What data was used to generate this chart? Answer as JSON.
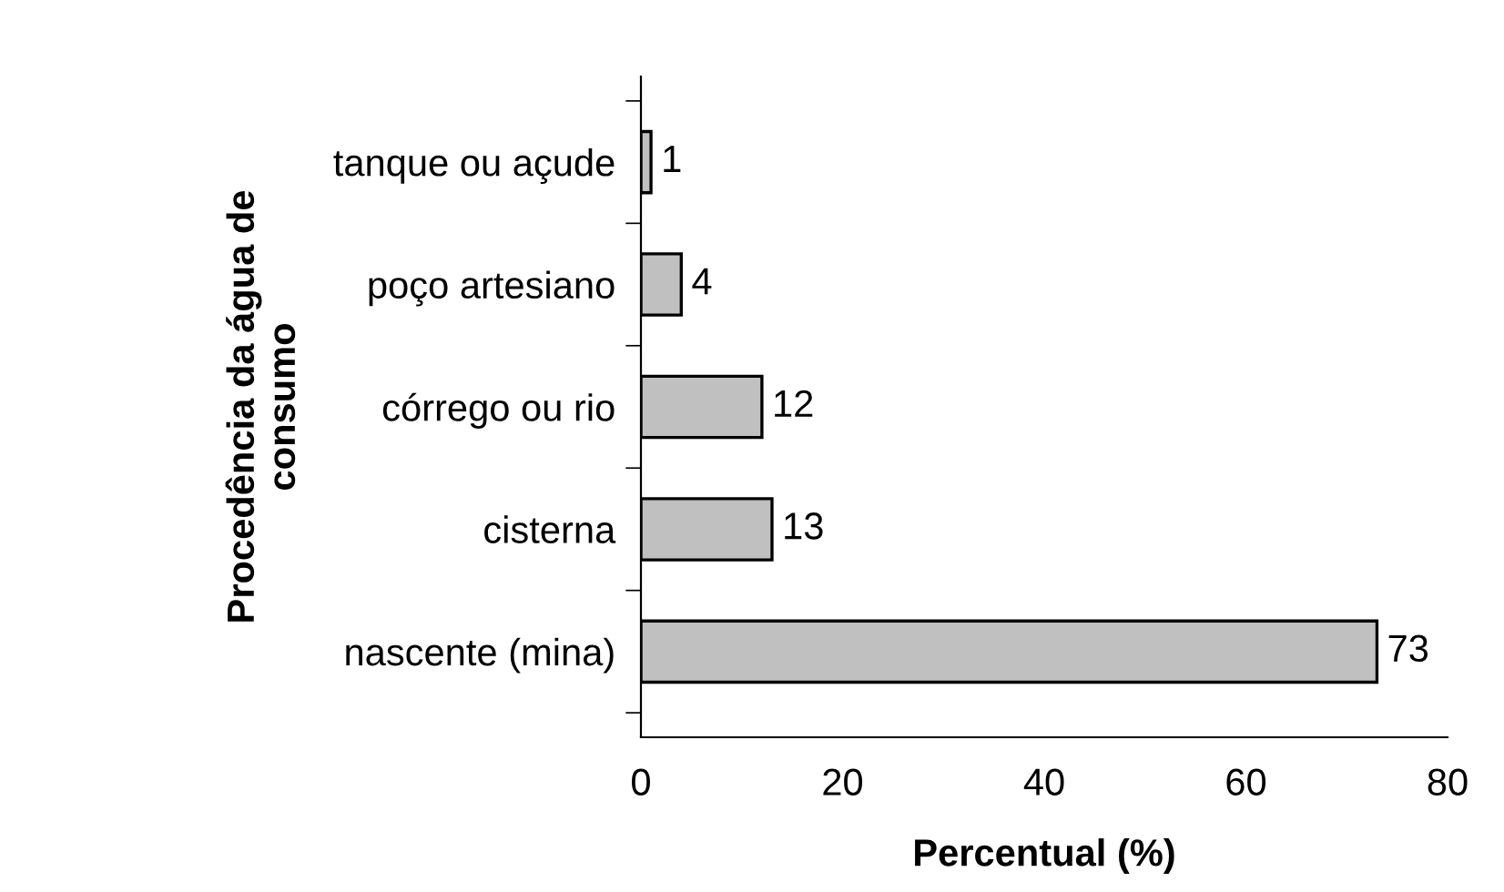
{
  "chart_data": {
    "type": "bar",
    "orientation": "horizontal",
    "categories": [
      "tanque ou açude",
      "poço artesiano",
      "córrego ou rio",
      "cisterna",
      "nascente (mina)"
    ],
    "values": [
      1,
      4,
      12,
      13,
      73
    ],
    "color": "#c0c0c0",
    "xlim": [
      0,
      80
    ],
    "xticks": [
      0,
      20,
      40,
      60,
      80
    ],
    "xlabel": "Percentual (%)",
    "ylabel": "Procedência da água de\nconsumo",
    "data_labels": true,
    "grid": false,
    "legend": false
  }
}
